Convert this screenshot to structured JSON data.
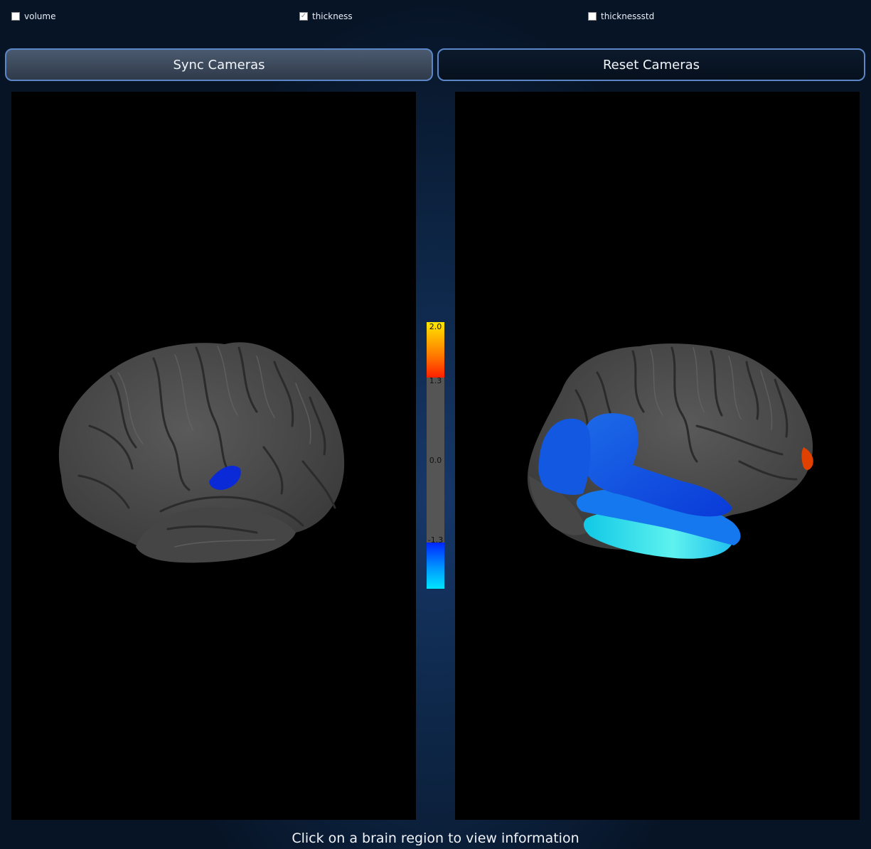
{
  "metrics": [
    {
      "label": "volume",
      "checked": false
    },
    {
      "label": "thickness",
      "checked": true
    },
    {
      "label": "thicknessstd",
      "checked": false
    }
  ],
  "toolbar": {
    "sync_label": "Sync Cameras",
    "reset_label": "Reset Cameras"
  },
  "colorbar": {
    "max_label": "2.0",
    "upper_threshold_label": "1.3",
    "mid_label": "0.0",
    "lower_threshold_label": "-1.3",
    "colors": {
      "high": "#ffe800",
      "upper": "#ff2a00",
      "neutral": "#555555",
      "lower": "#0026ff",
      "low": "#00e5ff"
    }
  },
  "status_text": "Click on a brain region to view information"
}
